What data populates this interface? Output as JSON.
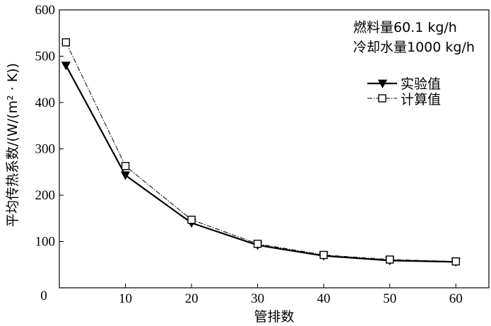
{
  "chart_data": {
    "type": "line",
    "xlabel": "管排数",
    "ylabel": "平均传热系数/(W/(m² · K))",
    "xlim": [
      0,
      65
    ],
    "ylim": [
      0,
      600
    ],
    "x_ticks": [
      0,
      10,
      20,
      30,
      40,
      50,
      60
    ],
    "y_ticks": [
      100,
      200,
      300,
      400,
      500,
      600
    ],
    "grid": false,
    "legend_position": "top-right",
    "annotations": [
      "燃料量60.1 kg/h",
      "冷却水量1000 kg/h"
    ],
    "series": [
      {
        "name": "实验值",
        "marker": "filled-down-triangle",
        "line_style": "solid",
        "x": [
          1,
          10,
          20,
          30,
          40,
          50,
          60
        ],
        "y": [
          480,
          243,
          140,
          92,
          69,
          59,
          56
        ]
      },
      {
        "name": "计算值",
        "marker": "open-square",
        "line_style": "dash-dot",
        "x": [
          1,
          10,
          20,
          30,
          40,
          50,
          60
        ],
        "y": [
          530,
          263,
          147,
          95,
          71,
          61,
          57
        ]
      }
    ]
  }
}
